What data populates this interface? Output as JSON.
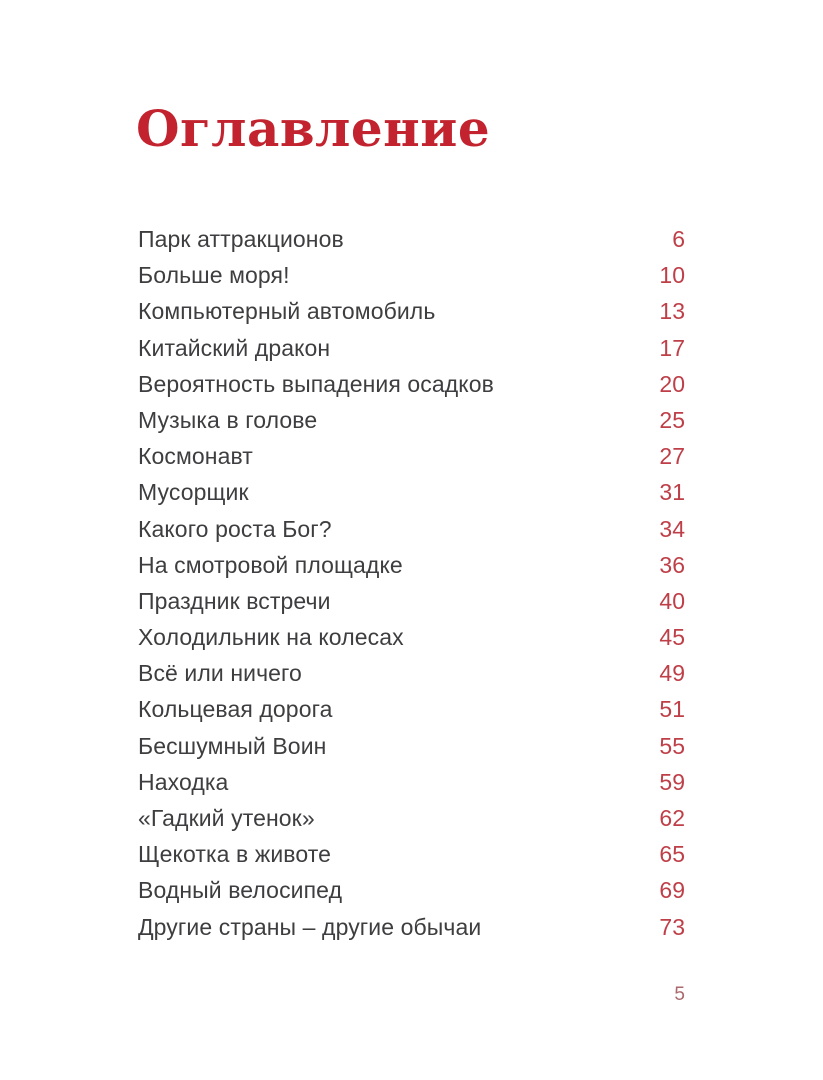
{
  "page": {
    "title": "Оглавление",
    "footer_page_number": "5",
    "colors": {
      "accent_red": "#c2232e",
      "number_red": "#bf3f48",
      "text_gray": "#3e3e40",
      "footer_muted": "#a9696d",
      "page_bg": "#ffffff"
    }
  },
  "toc": {
    "entries": [
      {
        "title": "Парк аттракционов",
        "page": "6"
      },
      {
        "title": "Больше моря!",
        "page": "10"
      },
      {
        "title": "Компьютерный автомобиль",
        "page": "13"
      },
      {
        "title": "Китайский дракон",
        "page": "17"
      },
      {
        "title": "Вероятность выпадения осадков",
        "page": "20"
      },
      {
        "title": "Музыка в голове",
        "page": "25"
      },
      {
        "title": "Космонавт",
        "page": "27"
      },
      {
        "title": "Мусорщик",
        "page": "31"
      },
      {
        "title": "Какого роста Бог?",
        "page": "34"
      },
      {
        "title": "На смотровой площадке",
        "page": "36"
      },
      {
        "title": "Праздник встречи",
        "page": "40"
      },
      {
        "title": "Холодильник на колесах",
        "page": "45"
      },
      {
        "title": "Всё или ничего",
        "page": "49"
      },
      {
        "title": "Кольцевая дорога",
        "page": "51"
      },
      {
        "title": "Бесшумный Воин",
        "page": "55"
      },
      {
        "title": "Находка",
        "page": "59"
      },
      {
        "title": "«Гадкий утенок»",
        "page": "62"
      },
      {
        "title": "Щекотка в животе",
        "page": "65"
      },
      {
        "title": "Водный велосипед",
        "page": "69"
      },
      {
        "title": "Другие страны – другие обычаи",
        "page": "73"
      }
    ]
  }
}
